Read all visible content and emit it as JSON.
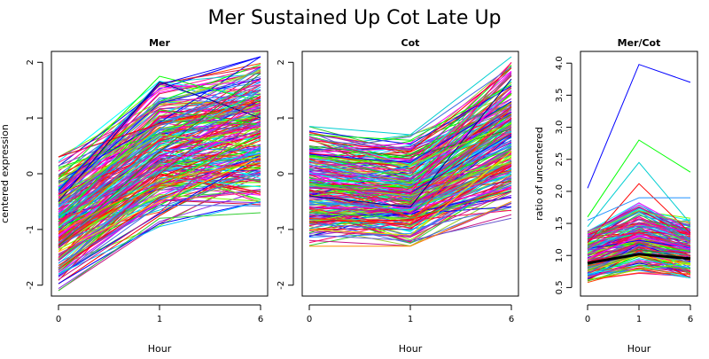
{
  "figure": {
    "title": "Mer Sustained Up Cot Late Up"
  },
  "chart_data": [
    {
      "type": "line",
      "title": "Mer",
      "xlabel": "Hour",
      "ylabel": "centered expression",
      "categories": [
        "0",
        "1",
        "6"
      ],
      "yticks": [
        "-2",
        "-1",
        "0",
        "1",
        "2"
      ],
      "ylim": [
        -2.1,
        2.1
      ],
      "legend": "none",
      "grid": false,
      "profile_envelope": {
        "min": [
          -2.1,
          -0.95,
          -0.7
        ],
        "max": [
          0.3,
          1.75,
          2.1
        ]
      },
      "series": [
        {
          "values": [
            0.3,
            0.9,
            1.3
          ],
          "color": "#ff0000"
        },
        {
          "values": [
            0.2,
            1.2,
            1.6
          ],
          "color": "#ff1493"
        },
        {
          "values": [
            -0.1,
            1.75,
            1.3
          ],
          "color": "#00ff00"
        },
        {
          "values": [
            -0.3,
            1.6,
            2.1
          ],
          "color": "#0000ff"
        },
        {
          "values": [
            -0.5,
            1.65,
            1.0
          ],
          "color": "#00008b"
        },
        {
          "values": [
            -0.6,
            0.8,
            1.9
          ],
          "color": "#1e90ff"
        },
        {
          "values": [
            -0.8,
            0.5,
            1.5
          ],
          "color": "#00ced1"
        },
        {
          "values": [
            -1.0,
            0.3,
            1.2
          ],
          "color": "#8a2be2"
        },
        {
          "values": [
            -1.1,
            0.1,
            0.9
          ],
          "color": "#ff00ff"
        },
        {
          "values": [
            -1.2,
            -0.2,
            0.6
          ],
          "color": "#ff4500"
        },
        {
          "values": [
            -1.3,
            0.4,
            1.8
          ],
          "color": "#228b22"
        },
        {
          "values": [
            -1.4,
            -0.5,
            0.3
          ],
          "color": "#ffd700"
        },
        {
          "values": [
            -1.5,
            0.0,
            1.4
          ],
          "color": "#dc143c"
        },
        {
          "values": [
            -1.6,
            -0.6,
            0.0
          ],
          "color": "#4169e1"
        },
        {
          "values": [
            -1.7,
            -0.3,
            0.8
          ],
          "color": "#9acd32"
        },
        {
          "values": [
            -1.8,
            -0.95,
            -0.5
          ],
          "color": "#00bfff"
        },
        {
          "values": [
            -1.9,
            -0.7,
            1.1
          ],
          "color": "#c71585"
        },
        {
          "values": [
            -2.1,
            -0.8,
            -0.7
          ],
          "color": "#32cd32"
        },
        {
          "values": [
            -0.9,
            0.6,
            1.7
          ],
          "color": "#ff0066"
        },
        {
          "values": [
            -1.25,
            0.2,
            1.5
          ],
          "color": "#6a5acd"
        },
        {
          "values": [
            -0.4,
            0.7,
            0.5
          ],
          "color": "#7fff00"
        },
        {
          "values": [
            -1.05,
            -0.1,
            0.2
          ],
          "color": "#ff8c00"
        }
      ]
    },
    {
      "type": "line",
      "title": "Cot",
      "xlabel": "Hour",
      "ylabel": "",
      "categories": [
        "0",
        "1",
        "6"
      ],
      "yticks": [
        "-2",
        "-1",
        "0",
        "1",
        "2"
      ],
      "ylim": [
        -2.1,
        2.1
      ],
      "legend": "none",
      "grid": false,
      "profile_envelope": {
        "min": [
          -1.3,
          -1.3,
          -0.8
        ],
        "max": [
          0.85,
          0.7,
          2.1
        ]
      },
      "series": [
        {
          "values": [
            0.85,
            0.7,
            2.1
          ],
          "color": "#00ced1"
        },
        {
          "values": [
            0.7,
            0.6,
            1.6
          ],
          "color": "#00ff00"
        },
        {
          "values": [
            0.6,
            0.4,
            1.9
          ],
          "color": "#ff0000"
        },
        {
          "values": [
            0.5,
            0.3,
            0.8
          ],
          "color": "#228b22"
        },
        {
          "values": [
            0.35,
            0.2,
            1.3
          ],
          "color": "#0000ff"
        },
        {
          "values": [
            0.2,
            0.05,
            1.8
          ],
          "color": "#ff1493"
        },
        {
          "values": [
            0.1,
            -0.1,
            1.1
          ],
          "color": "#8a2be2"
        },
        {
          "values": [
            0.0,
            -0.2,
            0.5
          ],
          "color": "#1e90ff"
        },
        {
          "values": [
            -0.1,
            -0.3,
            1.5
          ],
          "color": "#ff00ff"
        },
        {
          "values": [
            -0.2,
            -0.4,
            0.2
          ],
          "color": "#9acd32"
        },
        {
          "values": [
            -0.3,
            -0.5,
            1.0
          ],
          "color": "#dc143c"
        },
        {
          "values": [
            -0.4,
            -0.6,
            1.7
          ],
          "color": "#00008b"
        },
        {
          "values": [
            -0.5,
            -0.65,
            0.0
          ],
          "color": "#00bfff"
        },
        {
          "values": [
            -0.6,
            -0.7,
            0.7
          ],
          "color": "#c71585"
        },
        {
          "values": [
            -0.7,
            -0.8,
            -0.3
          ],
          "color": "#32cd32"
        },
        {
          "values": [
            -0.8,
            -0.9,
            1.2
          ],
          "color": "#ff4500"
        },
        {
          "values": [
            -0.9,
            -1.0,
            -0.6
          ],
          "color": "#4169e1"
        },
        {
          "values": [
            -1.0,
            -1.1,
            0.4
          ],
          "color": "#ffd700"
        },
        {
          "values": [
            -1.1,
            -1.2,
            -0.8
          ],
          "color": "#6a5acd"
        },
        {
          "values": [
            -1.3,
            -1.3,
            -0.5
          ],
          "color": "#ff8c00"
        },
        {
          "values": [
            -0.25,
            -0.35,
            2.0
          ],
          "color": "#ff0066"
        },
        {
          "values": [
            0.3,
            0.15,
            0.9
          ],
          "color": "#7fff00"
        }
      ]
    },
    {
      "type": "line",
      "title": "Mer/Cot",
      "xlabel": "Hour",
      "ylabel": "ratio of uncentered",
      "categories": [
        "0",
        "1",
        "6"
      ],
      "yticks": [
        "0.5",
        "1.0",
        "1.5",
        "2.0",
        "2.5",
        "3.0",
        "3.5",
        "4.0"
      ],
      "ylim": [
        0.45,
        4.1
      ],
      "legend": "none",
      "grid": false,
      "mean_line": {
        "values": [
          0.88,
          1.02,
          0.95
        ],
        "color": "#000000"
      },
      "series": [
        {
          "values": [
            2.05,
            3.98,
            3.7
          ],
          "color": "#0000ff"
        },
        {
          "values": [
            1.6,
            2.8,
            2.3
          ],
          "color": "#00ff00"
        },
        {
          "values": [
            1.45,
            2.45,
            1.5
          ],
          "color": "#00ced1"
        },
        {
          "values": [
            1.2,
            2.12,
            1.35
          ],
          "color": "#ff0000"
        },
        {
          "values": [
            1.55,
            1.9,
            1.9
          ],
          "color": "#1e90ff"
        },
        {
          "values": [
            1.35,
            1.7,
            1.5
          ],
          "color": "#9acd32"
        },
        {
          "values": [
            1.1,
            1.6,
            1.2
          ],
          "color": "#ff1493"
        },
        {
          "values": [
            1.0,
            1.45,
            1.25
          ],
          "color": "#8a2be2"
        },
        {
          "values": [
            0.95,
            1.3,
            1.1
          ],
          "color": "#ff00ff"
        },
        {
          "values": [
            0.9,
            1.2,
            1.0
          ],
          "color": "#dc143c"
        },
        {
          "values": [
            0.85,
            1.1,
            0.95
          ],
          "color": "#228b22"
        },
        {
          "values": [
            0.8,
            1.05,
            0.9
          ],
          "color": "#4169e1"
        },
        {
          "values": [
            0.75,
            1.0,
            0.85
          ],
          "color": "#ffd700"
        },
        {
          "values": [
            0.7,
            0.95,
            0.8
          ],
          "color": "#00bfff"
        },
        {
          "values": [
            0.65,
            0.9,
            0.75
          ],
          "color": "#c71585"
        },
        {
          "values": [
            0.6,
            0.85,
            0.8
          ],
          "color": "#32cd32"
        },
        {
          "values": [
            0.58,
            0.8,
            0.7
          ],
          "color": "#ff4500"
        },
        {
          "values": [
            1.25,
            1.35,
            1.15
          ],
          "color": "#ff0066"
        },
        {
          "values": [
            0.72,
            1.15,
            1.05
          ],
          "color": "#6a5acd"
        },
        {
          "values": [
            0.62,
            0.78,
            0.88
          ],
          "color": "#7fff00"
        }
      ]
    }
  ]
}
